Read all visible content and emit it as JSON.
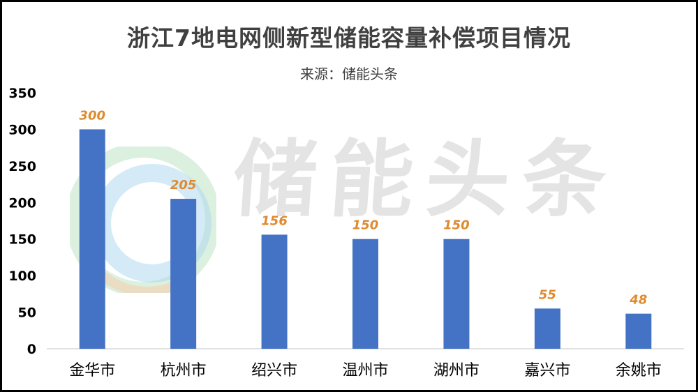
{
  "header": {
    "title": "浙江7地电网侧新型储能容量补偿项目情况",
    "source": "来源：储能头条"
  },
  "watermark": {
    "text": "储能头条",
    "logo_icon": "circular-swirl-logo-icon"
  },
  "chart_data": {
    "type": "bar",
    "title": "浙江7地电网侧新型储能容量补偿项目情况",
    "subtitle": "来源：储能头条",
    "xlabel": "",
    "ylabel": "",
    "categories": [
      "金华市",
      "杭州市",
      "绍兴市",
      "温州市",
      "湖州市",
      "嘉兴市",
      "余姚市"
    ],
    "values": [
      300,
      205,
      156,
      150,
      150,
      55,
      48
    ],
    "ylim": [
      0,
      350
    ],
    "yticks": [
      0,
      50,
      100,
      150,
      200,
      250,
      300,
      350
    ],
    "grid": false,
    "legend": "none",
    "bar_color": "#4472c4",
    "label_color": "#e08a2e"
  }
}
